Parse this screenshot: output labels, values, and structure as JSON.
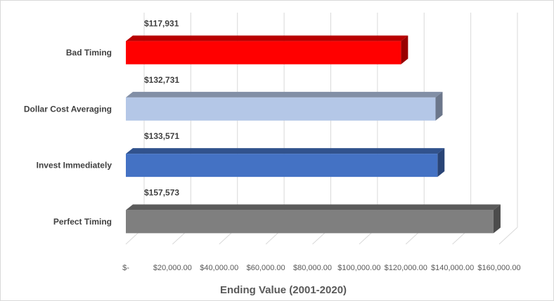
{
  "chart_data": {
    "type": "bar",
    "orientation": "horizontal",
    "style": "3d-clustered",
    "xlabel": "Ending Value (2001-2020)",
    "ylabel": "",
    "xlim": [
      0,
      160000
    ],
    "grid": true,
    "legend": "none",
    "categories": [
      "Bad Timing",
      "Dollar Cost Averaging",
      "Invest Immediately",
      "Perfect Timing"
    ],
    "values": [
      117931,
      132731,
      133571,
      157573
    ],
    "data_labels": [
      "$117,931",
      "$132,731",
      "$133,571",
      "$157,573"
    ],
    "colors": [
      "#ff0000",
      "#b4c7e7",
      "#4472c4",
      "#7f7f7f"
    ],
    "tick_values": [
      0,
      20000,
      40000,
      60000,
      80000,
      100000,
      120000,
      140000,
      160000
    ],
    "tick_labels": [
      "$-",
      "$20,000.00",
      "$40,000.00",
      "$60,000.00",
      "$80,000.00",
      "$100,000.00",
      "$120,000.00",
      "$140,000.00",
      "$160,000.00"
    ]
  }
}
